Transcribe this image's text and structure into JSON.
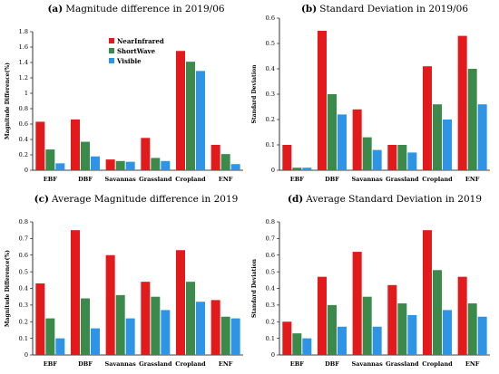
{
  "chart_data": [
    {
      "type": "bar",
      "panel": "(a)",
      "title": "Magnitude difference in 2019/06",
      "ylabel": "Magnitude Difference(%)",
      "xlabel": "",
      "ylim": [
        0,
        1.8
      ],
      "yticks": [
        "0",
        "0.2",
        "0.4",
        "0.6",
        "0.8",
        "1",
        "1.2",
        "1.4",
        "1.6",
        "1.8"
      ],
      "categories": [
        "EBF",
        "DBF",
        "Savannas",
        "Grassland",
        "Cropland",
        "ENF"
      ],
      "series": [
        {
          "name": "NearInfrared",
          "color": "#e31a1c",
          "values": [
            0.63,
            0.66,
            0.14,
            0.42,
            1.55,
            0.33
          ]
        },
        {
          "name": "ShortWave",
          "color": "#3a8a4c",
          "values": [
            0.27,
            0.37,
            0.12,
            0.16,
            1.41,
            0.21
          ]
        },
        {
          "name": "Visible",
          "color": "#2e95e6",
          "values": [
            0.09,
            0.18,
            0.11,
            0.12,
            1.29,
            0.08
          ]
        }
      ],
      "legend": "top-center",
      "grid": false
    },
    {
      "type": "bar",
      "panel": "(b)",
      "title": "Standard Deviation in 2019/06",
      "ylabel": "Standard Deviation",
      "xlabel": "",
      "ylim": [
        0,
        0.6
      ],
      "yticks": [
        "0",
        "0.1",
        "0.2",
        "0.3",
        "0.4",
        "0.5",
        "0.6"
      ],
      "categories": [
        "EBF",
        "DBF",
        "Savannas",
        "Grassland",
        "Cropland",
        "ENF"
      ],
      "series": [
        {
          "name": "NearInfrared",
          "color": "#e31a1c",
          "values": [
            0.1,
            0.55,
            0.24,
            0.1,
            0.41,
            0.53
          ]
        },
        {
          "name": "ShortWave",
          "color": "#3a8a4c",
          "values": [
            0.01,
            0.3,
            0.13,
            0.1,
            0.26,
            0.4
          ]
        },
        {
          "name": "Visible",
          "color": "#2e95e6",
          "values": [
            0.01,
            0.22,
            0.08,
            0.07,
            0.2,
            0.26
          ]
        }
      ],
      "grid": false
    },
    {
      "type": "bar",
      "panel": "(c)",
      "title": "Average Magnitude difference in 2019",
      "ylabel": "Magnitude Difference(%)",
      "xlabel": "",
      "ylim": [
        0,
        0.8
      ],
      "yticks": [
        "0",
        "0.1",
        "0.2",
        "0.3",
        "0.4",
        "0.5",
        "0.6",
        "0.7",
        "0.8"
      ],
      "categories": [
        "EBF",
        "DBF",
        "Savannas",
        "Grassland",
        "Cropland",
        "ENF"
      ],
      "series": [
        {
          "name": "NearInfrared",
          "color": "#e31a1c",
          "values": [
            0.43,
            0.75,
            0.6,
            0.44,
            0.63,
            0.33
          ]
        },
        {
          "name": "ShortWave",
          "color": "#3a8a4c",
          "values": [
            0.22,
            0.34,
            0.36,
            0.35,
            0.44,
            0.23
          ]
        },
        {
          "name": "Visible",
          "color": "#2e95e6",
          "values": [
            0.1,
            0.16,
            0.22,
            0.27,
            0.32,
            0.22
          ]
        }
      ],
      "grid": false
    },
    {
      "type": "bar",
      "panel": "(d)",
      "title": "Average Standard Deviation in 2019",
      "ylabel": "Standard Deviation",
      "xlabel": "",
      "ylim": [
        0,
        0.8
      ],
      "yticks": [
        "0",
        "0.1",
        "0.2",
        "0.3",
        "0.4",
        "0.5",
        "0.6",
        "0.7",
        "0.8"
      ],
      "categories": [
        "EBF",
        "DBF",
        "Savannas",
        "Grassland",
        "Cropland",
        "ENF"
      ],
      "series": [
        {
          "name": "NearInfrared",
          "color": "#e31a1c",
          "values": [
            0.2,
            0.47,
            0.62,
            0.42,
            0.75,
            0.47
          ]
        },
        {
          "name": "ShortWave",
          "color": "#3a8a4c",
          "values": [
            0.13,
            0.3,
            0.35,
            0.31,
            0.51,
            0.31
          ]
        },
        {
          "name": "Visible",
          "color": "#2e95e6",
          "values": [
            0.1,
            0.17,
            0.17,
            0.24,
            0.27,
            0.23
          ]
        }
      ],
      "grid": false
    }
  ]
}
